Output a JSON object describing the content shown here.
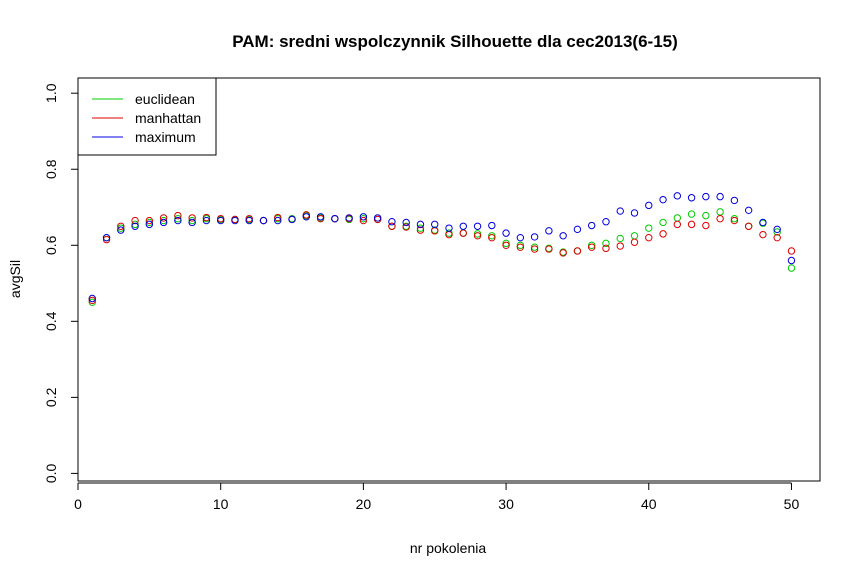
{
  "chart_data": {
    "type": "scatter",
    "title": "PAM: sredni wspolczynnik Silhouette dla cec2013(6-15)",
    "xlabel": "nr pokolenia",
    "ylabel": "avgSil",
    "xlim": [
      0,
      52
    ],
    "ylim": [
      -0.02,
      1.04
    ],
    "xticks": [
      0,
      10,
      20,
      30,
      40,
      50
    ],
    "yticks": [
      0.0,
      0.2,
      0.4,
      0.6,
      0.8,
      1.0
    ],
    "xtick_labels": [
      "0",
      "10",
      "20",
      "30",
      "40",
      "50"
    ],
    "ytick_labels": [
      "0.0",
      "0.2",
      "0.4",
      "0.6",
      "0.8",
      "1.0"
    ],
    "legend_position": "top-left",
    "x": [
      1,
      2,
      3,
      4,
      5,
      6,
      7,
      8,
      9,
      10,
      11,
      12,
      13,
      14,
      15,
      16,
      17,
      18,
      19,
      20,
      21,
      22,
      23,
      24,
      25,
      26,
      27,
      28,
      29,
      30,
      31,
      32,
      33,
      34,
      35,
      36,
      37,
      38,
      39,
      40,
      41,
      42,
      43,
      44,
      45,
      46,
      47,
      48,
      49,
      50
    ],
    "series": [
      {
        "name": "euclidean",
        "color": "#00cc00",
        "values": [
          0.45,
          0.62,
          0.645,
          0.655,
          0.66,
          0.665,
          0.67,
          0.665,
          0.67,
          0.668,
          0.668,
          0.668,
          0.665,
          0.67,
          0.67,
          0.678,
          0.672,
          0.67,
          0.668,
          0.67,
          0.668,
          0.65,
          0.65,
          0.645,
          0.64,
          0.632,
          0.632,
          0.63,
          0.625,
          0.605,
          0.6,
          0.595,
          0.592,
          0.582,
          0.585,
          0.6,
          0.605,
          0.618,
          0.625,
          0.645,
          0.66,
          0.672,
          0.682,
          0.678,
          0.688,
          0.67,
          0.65,
          0.658,
          0.635,
          0.54
        ]
      },
      {
        "name": "manhattan",
        "color": "#dd0000",
        "values": [
          0.455,
          0.615,
          0.65,
          0.665,
          0.665,
          0.672,
          0.678,
          0.672,
          0.673,
          0.67,
          0.668,
          0.67,
          0.665,
          0.673,
          0.668,
          0.68,
          0.67,
          0.67,
          0.67,
          0.665,
          0.668,
          0.65,
          0.648,
          0.64,
          0.638,
          0.628,
          0.632,
          0.625,
          0.62,
          0.6,
          0.595,
          0.59,
          0.59,
          0.58,
          0.585,
          0.595,
          0.592,
          0.598,
          0.608,
          0.62,
          0.63,
          0.655,
          0.655,
          0.652,
          0.67,
          0.665,
          0.65,
          0.628,
          0.62,
          0.585
        ]
      },
      {
        "name": "maximum",
        "color": "#0000dd",
        "values": [
          0.46,
          0.62,
          0.64,
          0.65,
          0.655,
          0.66,
          0.665,
          0.66,
          0.665,
          0.665,
          0.665,
          0.665,
          0.665,
          0.665,
          0.668,
          0.675,
          0.675,
          0.67,
          0.672,
          0.675,
          0.672,
          0.662,
          0.66,
          0.655,
          0.655,
          0.645,
          0.65,
          0.65,
          0.652,
          0.632,
          0.62,
          0.622,
          0.638,
          0.625,
          0.642,
          0.652,
          0.662,
          0.69,
          0.685,
          0.705,
          0.72,
          0.73,
          0.725,
          0.728,
          0.728,
          0.718,
          0.692,
          0.66,
          0.642,
          0.56
        ]
      }
    ]
  }
}
